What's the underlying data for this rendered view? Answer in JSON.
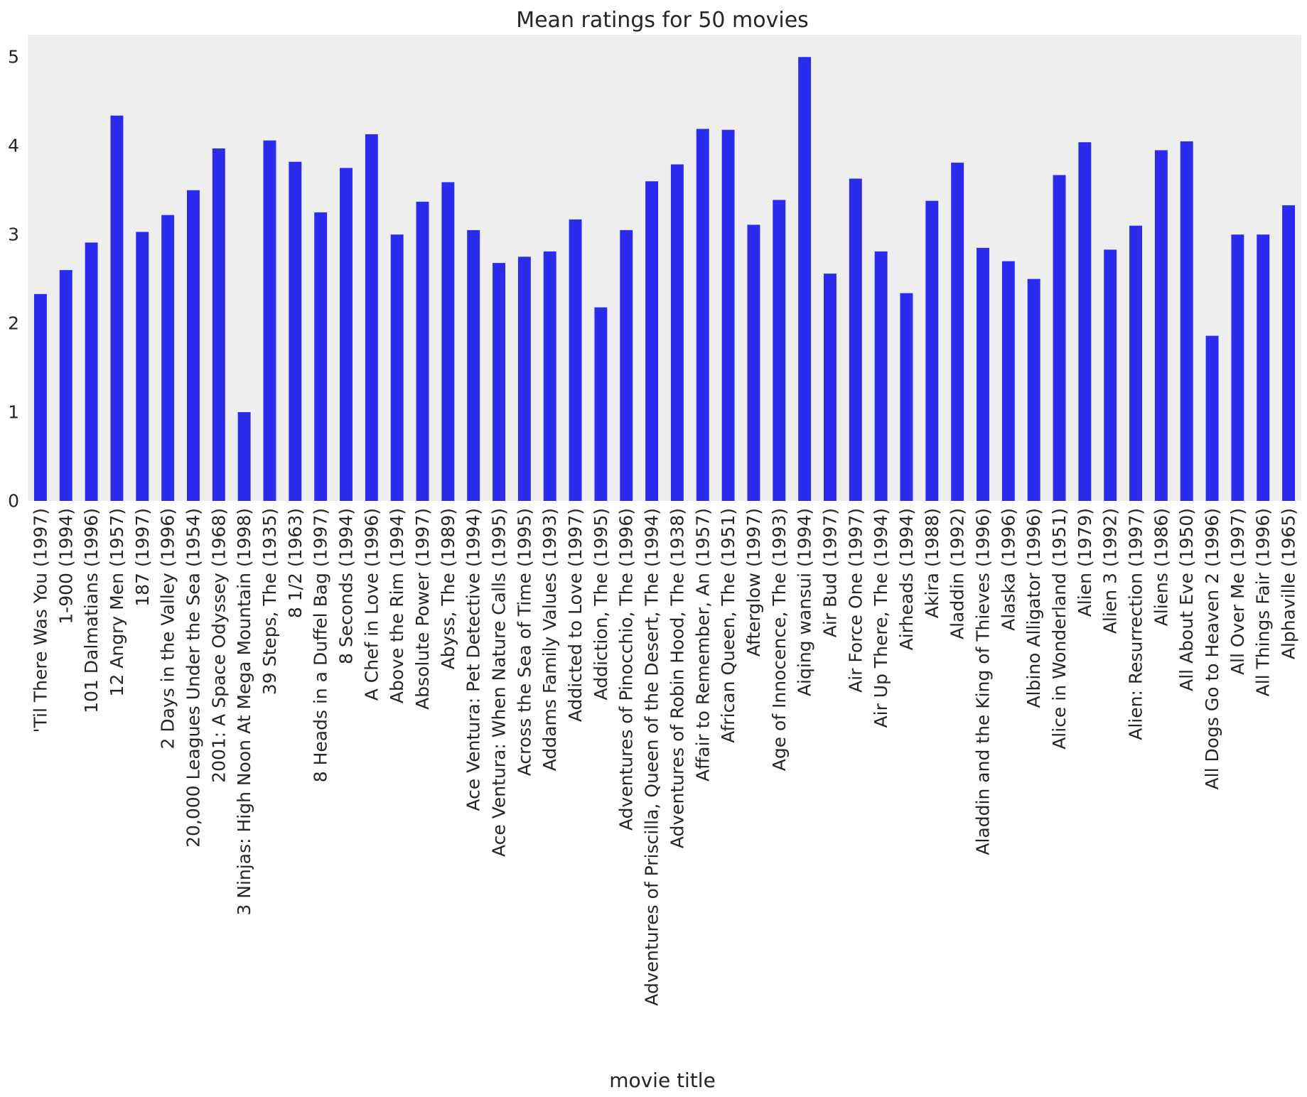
{
  "chart_data": {
    "type": "bar",
    "title": "Mean ratings for 50 movies",
    "xlabel": "movie title",
    "ylabel": "",
    "ylim": [
      0,
      5.25
    ],
    "yticks": [
      0,
      1,
      2,
      3,
      4,
      5
    ],
    "grid": false,
    "legend": "none",
    "colors": {
      "bar": "#2b2bed",
      "background": "#eeeeee",
      "text": "#262626"
    },
    "categories": [
      "'Til There Was You (1997)",
      "1-900 (1994)",
      "101 Dalmatians (1996)",
      "12 Angry Men (1957)",
      "187 (1997)",
      "2 Days in the Valley (1996)",
      "20,000 Leagues Under the Sea (1954)",
      "2001: A Space Odyssey (1968)",
      "3 Ninjas: High Noon At Mega Mountain (1998)",
      "39 Steps, The (1935)",
      "8 1/2 (1963)",
      "8 Heads in a Duffel Bag (1997)",
      "8 Seconds (1994)",
      "A Chef in Love (1996)",
      "Above the Rim (1994)",
      "Absolute Power (1997)",
      "Abyss, The (1989)",
      "Ace Ventura: Pet Detective (1994)",
      "Ace Ventura: When Nature Calls (1995)",
      "Across the Sea of Time (1995)",
      "Addams Family Values (1993)",
      "Addicted to Love (1997)",
      "Addiction, The (1995)",
      "Adventures of Pinocchio, The (1996)",
      "Adventures of Priscilla, Queen of the Desert, The (1994)",
      "Adventures of Robin Hood, The (1938)",
      "Affair to Remember, An (1957)",
      "African Queen, The (1951)",
      "Afterglow (1997)",
      "Age of Innocence, The (1993)",
      "Aiqing wansui (1994)",
      "Air Bud (1997)",
      "Air Force One (1997)",
      "Air Up There, The (1994)",
      "Airheads (1994)",
      "Akira (1988)",
      "Aladdin (1992)",
      "Aladdin and the King of Thieves (1996)",
      "Alaska (1996)",
      "Albino Alligator (1996)",
      "Alice in Wonderland (1951)",
      "Alien (1979)",
      "Alien 3 (1992)",
      "Alien: Resurrection (1997)",
      "Aliens (1986)",
      "All About Eve (1950)",
      "All Dogs Go to Heaven 2 (1996)",
      "All Over Me (1997)",
      "All Things Fair (1996)",
      "Alphaville (1965)"
    ],
    "values": [
      2.33,
      2.6,
      2.91,
      4.34,
      3.03,
      3.22,
      3.5,
      3.97,
      1.0,
      4.06,
      3.82,
      3.25,
      3.75,
      4.13,
      3.0,
      3.37,
      3.59,
      3.05,
      2.68,
      2.75,
      2.81,
      3.17,
      2.18,
      3.05,
      3.6,
      3.79,
      4.19,
      4.18,
      3.11,
      3.39,
      5.0,
      2.56,
      3.63,
      2.81,
      2.34,
      3.38,
      3.81,
      2.85,
      2.7,
      2.5,
      3.67,
      4.04,
      2.83,
      3.1,
      3.95,
      4.05,
      1.86,
      3.0,
      3.0,
      3.33
    ]
  }
}
